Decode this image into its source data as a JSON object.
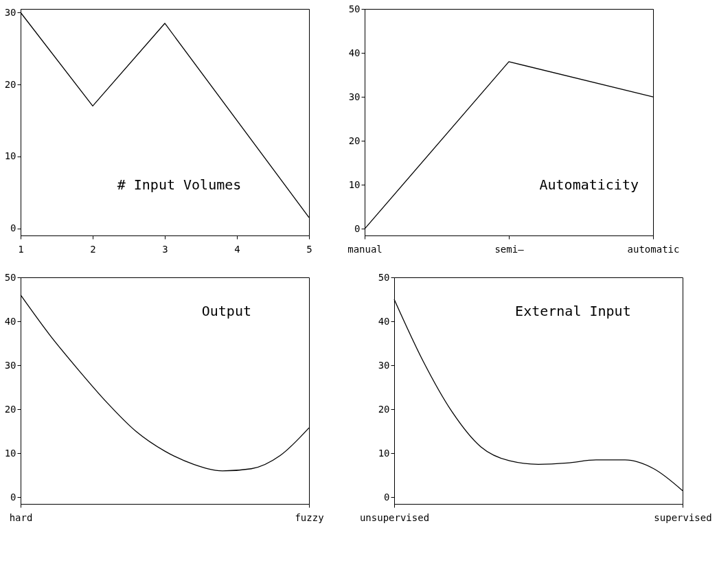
{
  "chart_data": [
    {
      "type": "line",
      "title": "# Input Volumes",
      "x": [
        1,
        2,
        3,
        5
      ],
      "values": [
        30,
        17,
        28.5,
        1.5
      ],
      "color": "#000000",
      "xlim": [
        1,
        5
      ],
      "xticks": [
        1,
        2,
        3,
        4,
        5
      ],
      "ylim": [
        -1,
        30.5
      ],
      "yticks": [
        0,
        10,
        20,
        30
      ],
      "grid": false
    },
    {
      "type": "line",
      "title": "Automaticity",
      "categories": [
        "manual",
        "semi—",
        "automatic"
      ],
      "values": [
        0,
        38,
        30
      ],
      "color": "#000000",
      "ylim": [
        -1.5,
        50
      ],
      "yticks": [
        0,
        10,
        20,
        30,
        40,
        50
      ],
      "grid": false
    },
    {
      "type": "line",
      "title": "Output",
      "categories": [
        "hard",
        null,
        null,
        null,
        null,
        null,
        null,
        null,
        null,
        null,
        "fuzzy"
      ],
      "values": [
        46,
        37,
        29,
        21.5,
        15,
        10.5,
        7.5,
        6,
        6.5,
        9.5,
        15.8
      ],
      "color": "#000000",
      "ylim": [
        -1.5,
        50
      ],
      "yticks": [
        0,
        10,
        20,
        30,
        40,
        50
      ],
      "grid": false
    },
    {
      "type": "line",
      "title": "External Input",
      "categories": [
        "unsupervised",
        null,
        null,
        null,
        null,
        null,
        null,
        null,
        null,
        null,
        "supervised"
      ],
      "values": [
        45,
        31,
        19.5,
        11.5,
        8.3,
        7.5,
        7.8,
        8.5,
        8.5,
        6.5,
        1.5
      ],
      "color": "#000000",
      "ylim": [
        -1.5,
        50
      ],
      "yticks": [
        0,
        10,
        20,
        30,
        40,
        50
      ],
      "grid": false
    }
  ]
}
